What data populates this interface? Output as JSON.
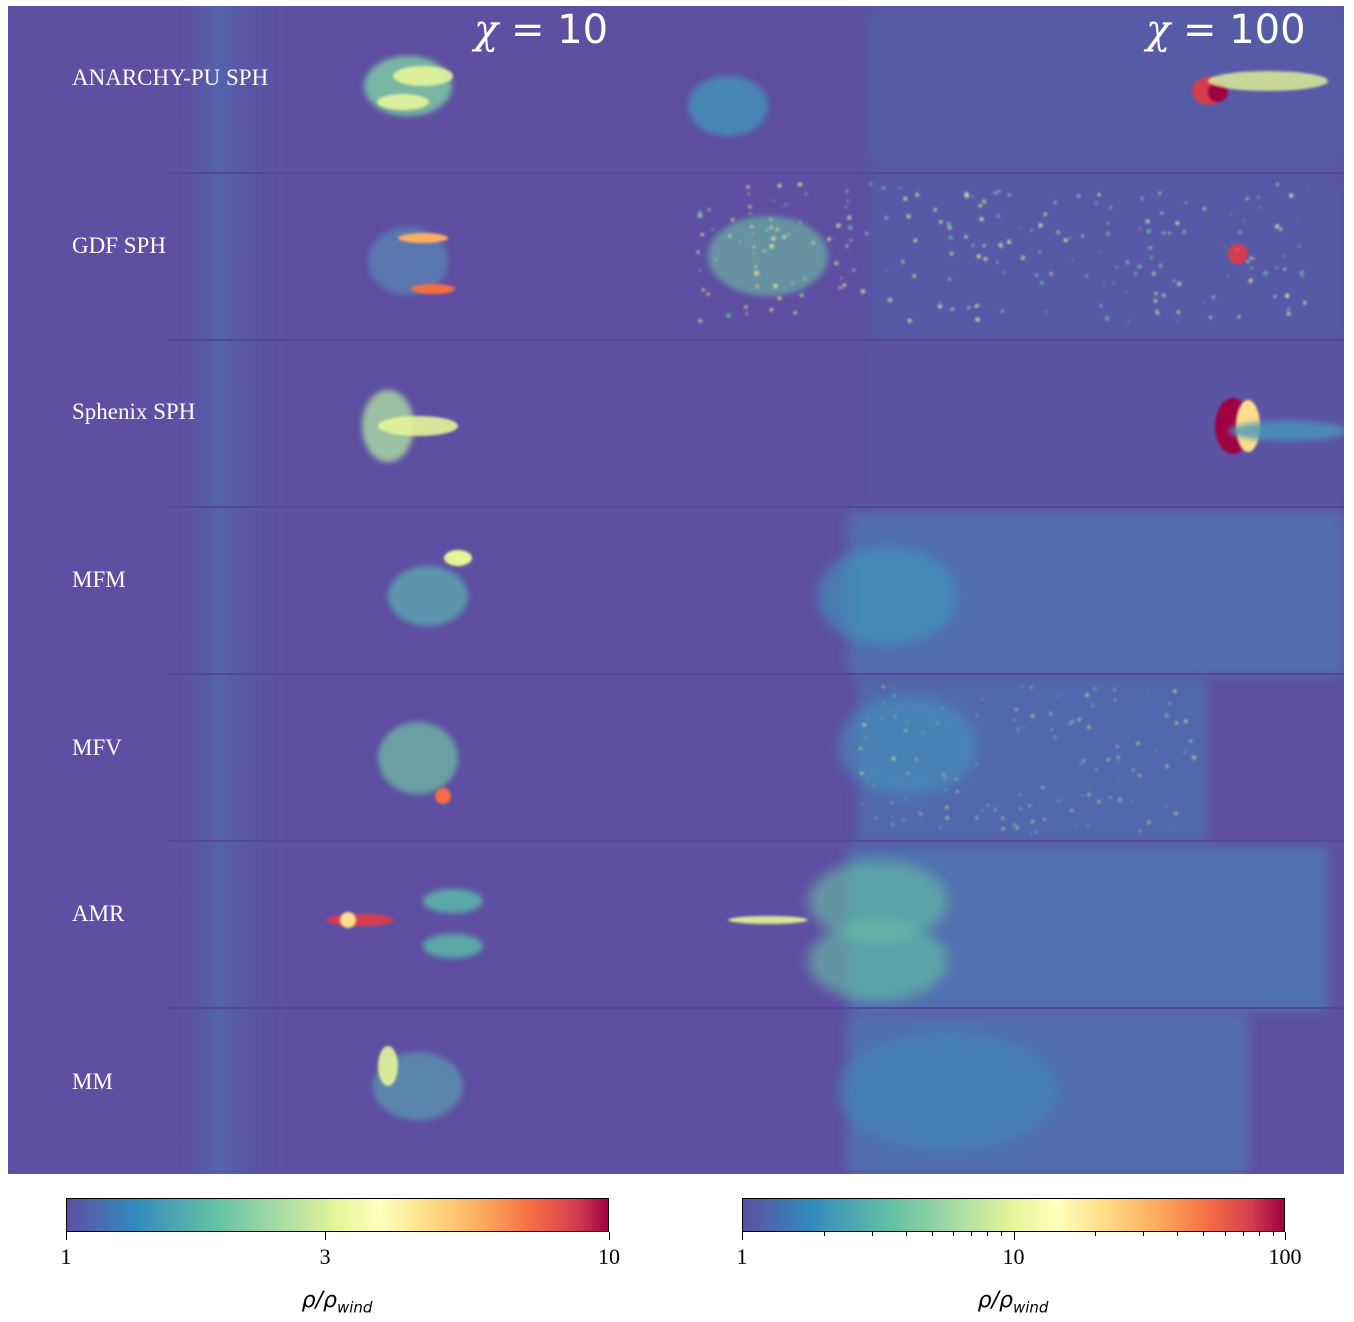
{
  "figure": {
    "panels": [
      {
        "chi": "χ = 10",
        "chi_symbol": "χ",
        "chi_value": "= 10"
      },
      {
        "chi": "χ = 100",
        "chi_symbol": "χ",
        "chi_value": "= 100"
      }
    ],
    "rows": [
      {
        "label": "ANARCHY-PU SPH"
      },
      {
        "label": "GDF SPH"
      },
      {
        "label": "Sphenix SPH"
      },
      {
        "label": "MFM"
      },
      {
        "label": "MFV"
      },
      {
        "label": "AMR"
      },
      {
        "label": "MM"
      }
    ],
    "background_color": "#5e4fa2",
    "colormap": "Spectral_r"
  },
  "colorbars": [
    {
      "scale": "log",
      "ticks": [
        "1",
        "3",
        "10"
      ],
      "tick_values": [
        1,
        3,
        10
      ],
      "range": [
        1,
        10
      ],
      "label": "ρ/ρwind",
      "label_main": "ρ/ρ",
      "label_sub": "wind"
    },
    {
      "scale": "log",
      "ticks": [
        "1",
        "10",
        "100"
      ],
      "tick_values": [
        1,
        10,
        100
      ],
      "minor_tick_values": [
        2,
        3,
        4,
        5,
        6,
        7,
        8,
        9,
        20,
        30,
        40,
        50,
        60,
        70,
        80,
        90
      ],
      "range": [
        1,
        100
      ],
      "label": "ρ/ρwind",
      "label_main": "ρ/ρ",
      "label_sub": "wind"
    }
  ]
}
